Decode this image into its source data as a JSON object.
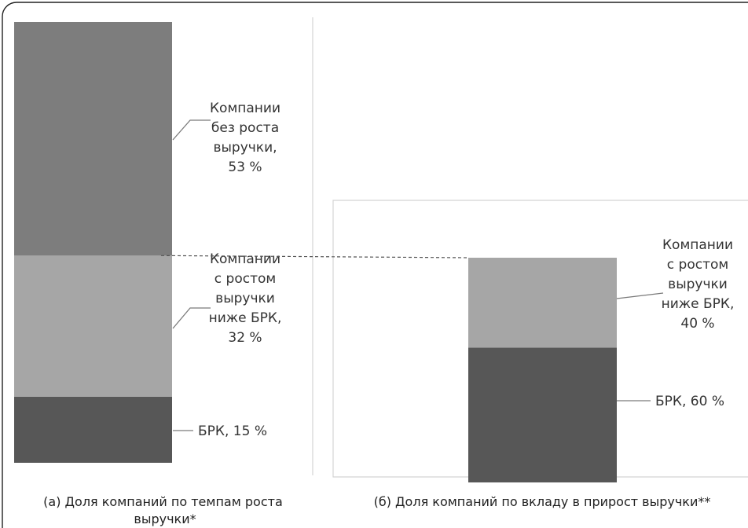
{
  "chart_data": [
    {
      "type": "bar",
      "stacked": true,
      "caption": [
        "(а) Доля компаний по темпам роста",
        "выручки*"
      ],
      "ylim": [
        0,
        100
      ],
      "segments": [
        {
          "label": [
            "БРК, 15 %"
          ],
          "value": 15,
          "color": "#575757"
        },
        {
          "label": [
            "Компании",
            "с ростом",
            "выручки",
            "ниже БРК,",
            "32 %"
          ],
          "value": 32,
          "color": "#a6a6a6"
        },
        {
          "label": [
            "Компании",
            "без роста",
            "выручки,",
            "53 %"
          ],
          "value": 53,
          "color": "#7d7d7d"
        }
      ]
    },
    {
      "type": "bar",
      "stacked": true,
      "caption": [
        "(б) Доля компаний по вкладу в прирост выручки**"
      ],
      "ylim": [
        0,
        100
      ],
      "segments": [
        {
          "label": [
            "БРК, 60 %"
          ],
          "value": 60,
          "color": "#575757"
        },
        {
          "label": [
            "Компании",
            "с ростом",
            "выручки",
            "ниже БРК,",
            "40 %"
          ],
          "value": 40,
          "color": "#a6a6a6"
        }
      ]
    }
  ]
}
